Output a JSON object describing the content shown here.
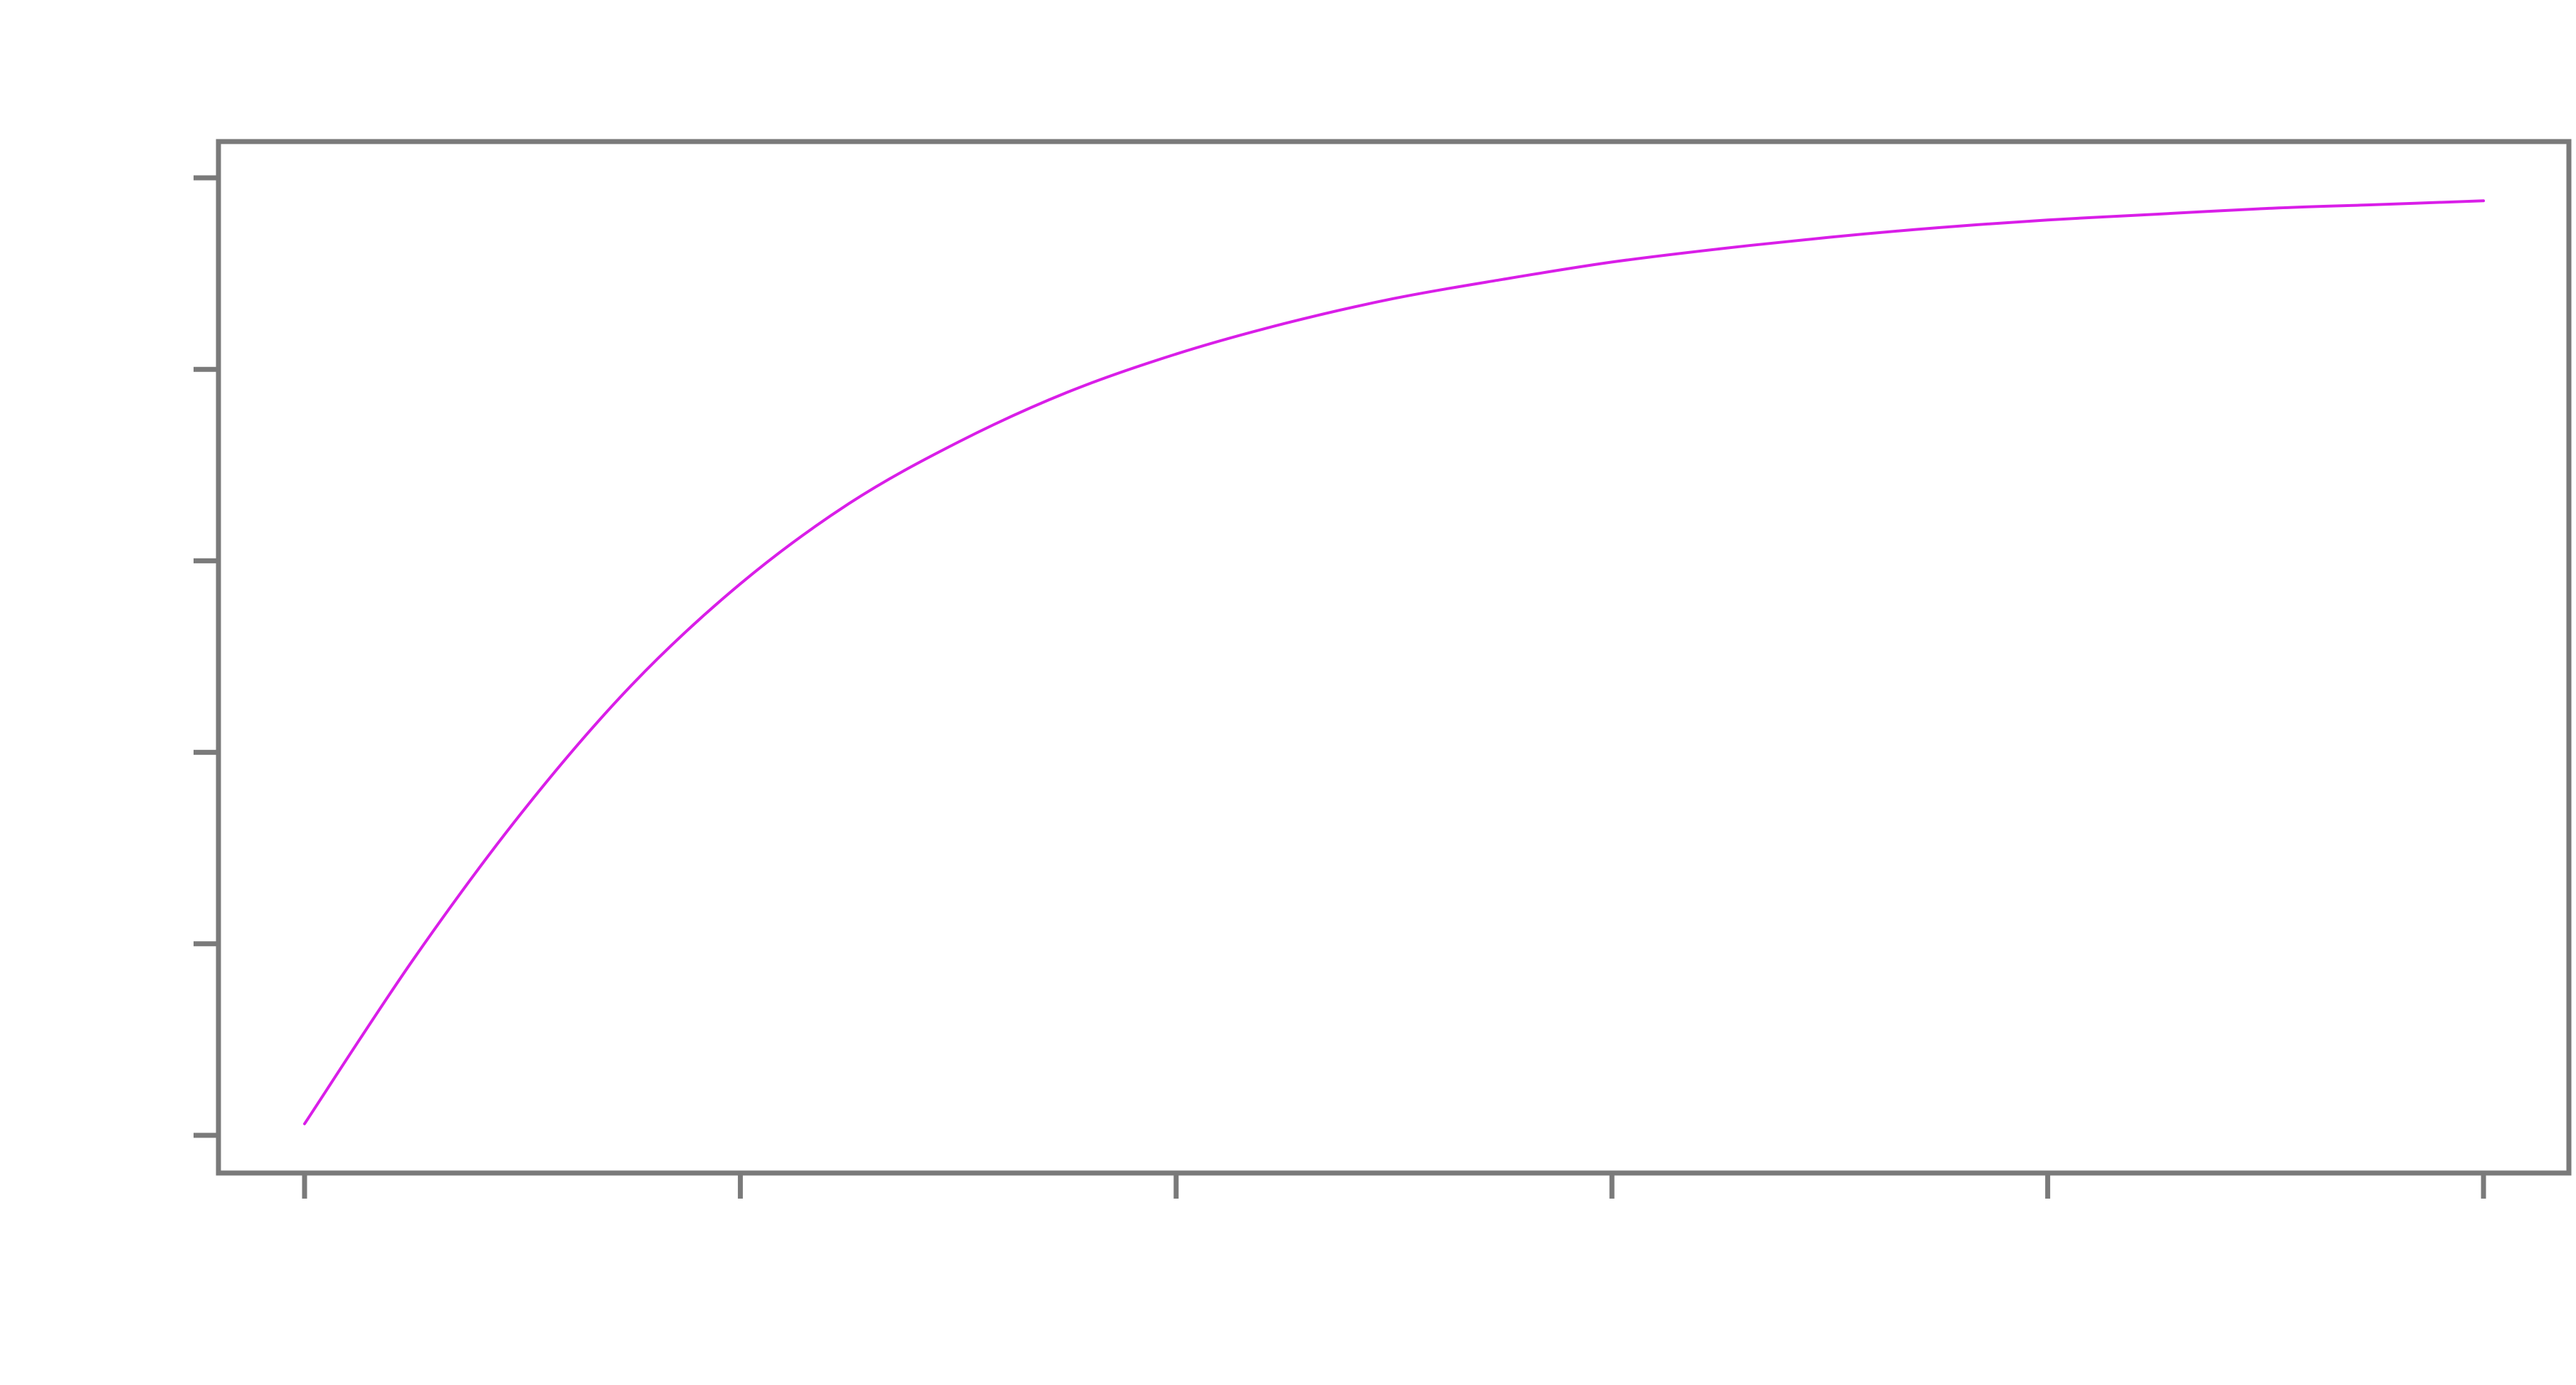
{
  "chart_data": {
    "type": "line",
    "title": "",
    "xlabel": "",
    "ylabel": "",
    "xlim": [
      0,
      5
    ],
    "ylim": [
      0,
      5
    ],
    "x_ticks": [
      0,
      1,
      2,
      3,
      4,
      5
    ],
    "y_ticks": [
      0,
      1,
      2,
      3,
      4,
      5
    ],
    "tick_labels_visible": false,
    "grid": false,
    "legend": "none",
    "colors": {
      "axis": "#7a7a7a",
      "series": "#d91ee8"
    },
    "series": [
      {
        "color": "#d91ee8",
        "x": [
          0,
          0.25,
          0.5,
          0.75,
          1,
          1.25,
          1.5,
          1.75,
          2,
          2.25,
          2.5,
          2.75,
          3,
          3.25,
          3.5,
          3.75,
          4,
          4.25,
          4.5,
          4.75,
          5
        ],
        "y": [
          0.06,
          0.92,
          1.69,
          2.35,
          2.88,
          3.3,
          3.62,
          3.88,
          4.08,
          4.24,
          4.37,
          4.47,
          4.56,
          4.63,
          4.69,
          4.74,
          4.78,
          4.81,
          4.84,
          4.86,
          4.88
        ]
      }
    ]
  }
}
